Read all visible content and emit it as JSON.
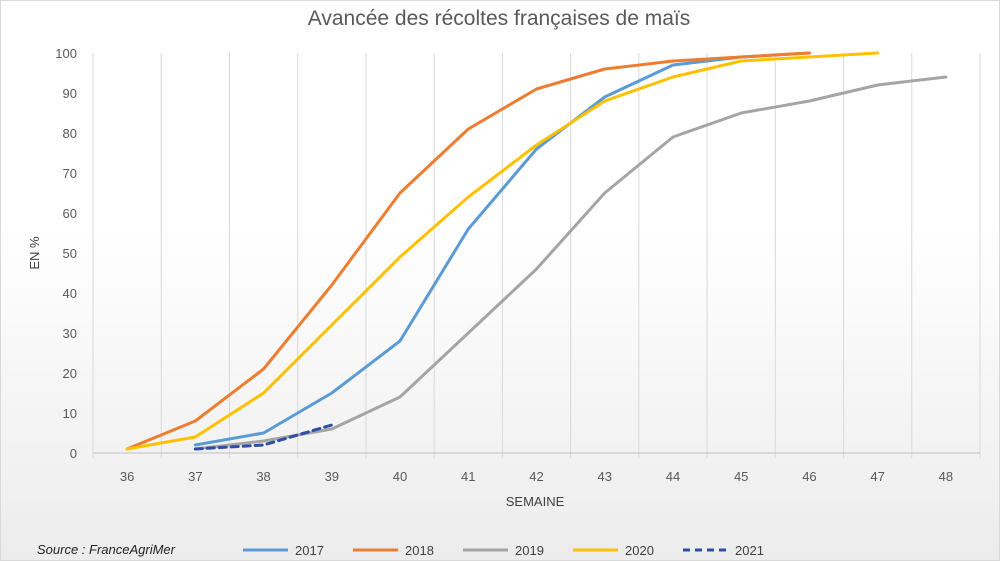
{
  "chart_data": {
    "type": "line",
    "title": "Avancée des récoltes françaises de maïs",
    "xlabel": "SEMAINE",
    "ylabel": "EN %",
    "x": [
      36,
      37,
      38,
      39,
      40,
      41,
      42,
      43,
      44,
      45,
      46,
      47,
      48
    ],
    "xlim": [
      36,
      48
    ],
    "ylim": [
      0,
      100
    ],
    "yticks": [
      0,
      10,
      20,
      30,
      40,
      50,
      60,
      70,
      80,
      90,
      100
    ],
    "grid": "vertical",
    "legend_position": "bottom",
    "series": [
      {
        "name": "2017",
        "color": "#5b9bd5",
        "dash": false,
        "points": [
          [
            37,
            2
          ],
          [
            38,
            5
          ],
          [
            39,
            15
          ],
          [
            40,
            28
          ],
          [
            41,
            56
          ],
          [
            42,
            76
          ],
          [
            43,
            89
          ],
          [
            44,
            97
          ],
          [
            45,
            99
          ],
          [
            46,
            100
          ]
        ]
      },
      {
        "name": "2018",
        "color": "#ed7d31",
        "dash": false,
        "points": [
          [
            36,
            1
          ],
          [
            37,
            8
          ],
          [
            38,
            21
          ],
          [
            39,
            42
          ],
          [
            40,
            65
          ],
          [
            41,
            81
          ],
          [
            42,
            91
          ],
          [
            43,
            96
          ],
          [
            44,
            98
          ],
          [
            45,
            99
          ],
          [
            46,
            100
          ]
        ]
      },
      {
        "name": "2019",
        "color": "#a5a5a5",
        "dash": false,
        "points": [
          [
            37,
            1
          ],
          [
            38,
            3
          ],
          [
            39,
            6
          ],
          [
            40,
            14
          ],
          [
            41,
            30
          ],
          [
            42,
            46
          ],
          [
            43,
            65
          ],
          [
            44,
            79
          ],
          [
            45,
            85
          ],
          [
            46,
            88
          ],
          [
            47,
            92
          ],
          [
            48,
            94
          ]
        ]
      },
      {
        "name": "2020",
        "color": "#ffc000",
        "dash": false,
        "points": [
          [
            36,
            1
          ],
          [
            37,
            4
          ],
          [
            38,
            15
          ],
          [
            39,
            32
          ],
          [
            40,
            49
          ],
          [
            41,
            64
          ],
          [
            42,
            77
          ],
          [
            43,
            88
          ],
          [
            44,
            94
          ],
          [
            45,
            98
          ],
          [
            46,
            99
          ],
          [
            47,
            100
          ]
        ]
      },
      {
        "name": "2021",
        "color": "#2f4ea6",
        "dash": true,
        "points": [
          [
            37,
            1
          ],
          [
            38,
            2
          ],
          [
            39,
            7
          ]
        ]
      }
    ]
  },
  "source": "Source : FranceAgriMer"
}
